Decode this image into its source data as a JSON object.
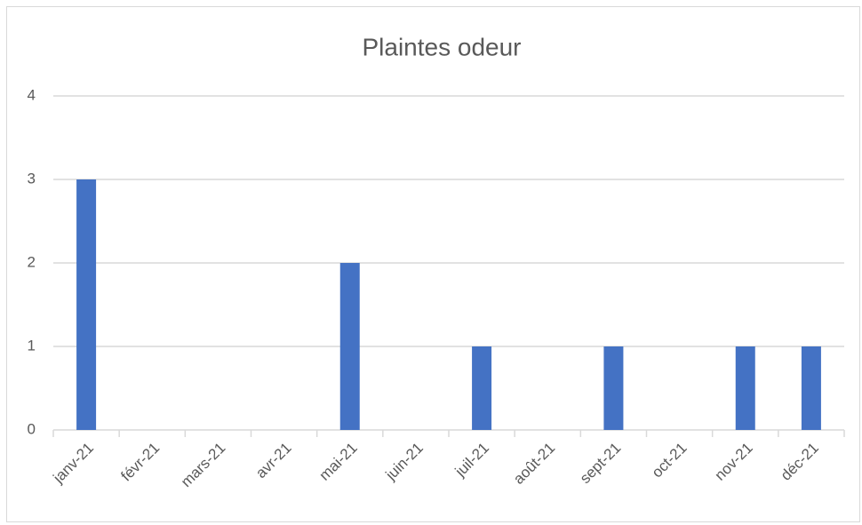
{
  "chart_data": {
    "type": "bar",
    "title": "Plaintes odeur",
    "categories": [
      "janv-21",
      "févr-21",
      "mars-21",
      "avr-21",
      "mai-21",
      "juin-21",
      "juil-21",
      "août-21",
      "sept-21",
      "oct-21",
      "nov-21",
      "déc-21"
    ],
    "values": [
      3,
      0,
      0,
      0,
      2,
      0,
      1,
      0,
      1,
      0,
      1,
      1
    ],
    "color": "#4472c4",
    "ylim": [
      0,
      4
    ],
    "yticks": [
      0,
      1,
      2,
      3,
      4
    ],
    "grid": true
  }
}
